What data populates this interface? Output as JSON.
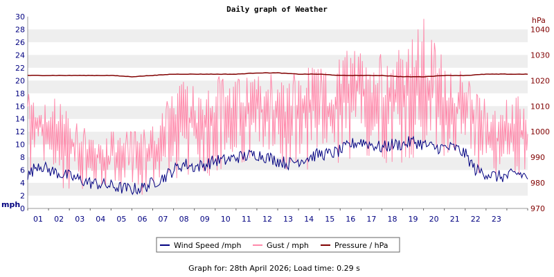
{
  "chart_data": {
    "type": "line",
    "title": "Daily graph of Weather",
    "footer": "Graph for: 28th April 2026; Load time: 0.29 s",
    "y_left": {
      "unit": "mph",
      "range": [
        0,
        30
      ],
      "ticks": [
        "0",
        "2",
        "4",
        "6",
        "8",
        "10",
        "12",
        "14",
        "16",
        "18",
        "20",
        "22",
        "24",
        "26",
        "28",
        "30"
      ]
    },
    "y_right": {
      "unit": "hPa",
      "range": [
        970,
        1045
      ],
      "ticks": [
        "970",
        "980",
        "990",
        "1000",
        "1010",
        "1020",
        "1030",
        "1040"
      ]
    },
    "x": {
      "range": [
        0,
        24
      ],
      "tick_labels": [
        "01",
        "02",
        "03",
        "04",
        "05",
        "06",
        "07",
        "08",
        "09",
        "10",
        "11",
        "12",
        "13",
        "14",
        "15",
        "16",
        "17",
        "18",
        "19",
        "20",
        "21",
        "22",
        "23"
      ]
    },
    "grid": "horizontal-bands",
    "legend_position": "bottom",
    "series": [
      {
        "name": "Wind Speed /mph",
        "color": "#000080",
        "axis": "left",
        "x": [
          0,
          0.5,
          1,
          1.5,
          2,
          2.5,
          3,
          3.5,
          4,
          4.5,
          5,
          5.5,
          6,
          6.5,
          7,
          7.5,
          8,
          8.5,
          9,
          9.5,
          10,
          10.5,
          11,
          11.5,
          12,
          12.5,
          13,
          13.5,
          14,
          14.5,
          15,
          15.5,
          16,
          16.5,
          17,
          17.5,
          18,
          18.5,
          19,
          19.5,
          20,
          20.5,
          21,
          21.5,
          22,
          22.5,
          23,
          23.5,
          24
        ],
        "values": [
          5,
          7,
          6,
          5.5,
          5,
          4.5,
          4,
          3.8,
          3.5,
          3.2,
          3,
          3.2,
          4,
          4.8,
          6,
          7,
          6.5,
          6.8,
          7.5,
          7.5,
          8,
          8.2,
          8.5,
          8,
          7.5,
          7,
          7.5,
          8,
          8.5,
          8.5,
          9,
          10,
          10.5,
          10,
          9.5,
          10,
          10,
          10.5,
          10,
          9.5,
          9.5,
          9.5,
          8.5,
          6,
          5.5,
          5,
          5,
          5.5,
          5
        ]
      },
      {
        "name": "Gust / mph",
        "color": "#ff88aa",
        "axis": "left",
        "x": [
          0,
          0.5,
          1,
          1.5,
          2,
          2.5,
          3,
          3.5,
          4,
          4.5,
          5,
          5.5,
          6,
          6.5,
          7,
          7.5,
          8,
          8.5,
          9,
          9.5,
          10,
          10.5,
          11,
          11.5,
          12,
          12.5,
          13,
          13.5,
          14,
          14.5,
          15,
          15.5,
          16,
          16.5,
          17,
          17.5,
          18,
          18.5,
          19,
          19.5,
          20,
          20.5,
          21,
          21.5,
          22,
          22.5,
          23,
          23.5,
          24
        ],
        "values": [
          12,
          14,
          11,
          12,
          10,
          9,
          8,
          8,
          7,
          8,
          7,
          8,
          9,
          11,
          13,
          14,
          13,
          14,
          15,
          15,
          15,
          15,
          16,
          15,
          15,
          14,
          15,
          16,
          16,
          15,
          17,
          18,
          19,
          18,
          17,
          18,
          19,
          20,
          19,
          18,
          17,
          16,
          15,
          13,
          12,
          11,
          11,
          12,
          11
        ],
        "min": [
          5,
          4,
          5,
          3,
          3,
          3,
          3,
          3,
          3,
          3,
          2,
          2,
          3,
          3,
          4,
          5,
          5,
          5,
          5,
          6,
          6,
          6,
          6,
          6,
          6,
          5,
          6,
          6,
          6,
          6,
          6,
          7,
          7,
          7,
          7,
          7,
          7,
          7,
          7,
          7,
          7,
          7,
          6,
          5,
          5,
          5,
          5,
          5,
          5
        ],
        "max": [
          18,
          17,
          16,
          18,
          14,
          13,
          12,
          12,
          12,
          12,
          12,
          12,
          14,
          16,
          18,
          20,
          19,
          20,
          21,
          20,
          20,
          21,
          22,
          21,
          21,
          20,
          22,
          22,
          22,
          21,
          24,
          25,
          25,
          25,
          24,
          25,
          28,
          27,
          30,
          26,
          24,
          22,
          21,
          18,
          17,
          16,
          17,
          18,
          17
        ]
      },
      {
        "name": "Pressure / hPa",
        "color": "#800000",
        "axis": "right",
        "x": [
          0,
          1,
          2,
          3,
          4,
          5,
          6,
          7,
          8,
          9,
          10,
          11,
          12,
          13,
          14,
          15,
          16,
          17,
          18,
          19,
          20,
          21,
          22,
          23,
          24
        ],
        "values": [
          1022,
          1022,
          1022,
          1022,
          1022,
          1021.5,
          1022,
          1022.5,
          1022.5,
          1022.5,
          1022.5,
          1023,
          1023,
          1022.5,
          1022.5,
          1022,
          1022,
          1022,
          1021.5,
          1021.5,
          1022,
          1022,
          1022.5,
          1022.5,
          1022.5
        ]
      }
    ]
  }
}
